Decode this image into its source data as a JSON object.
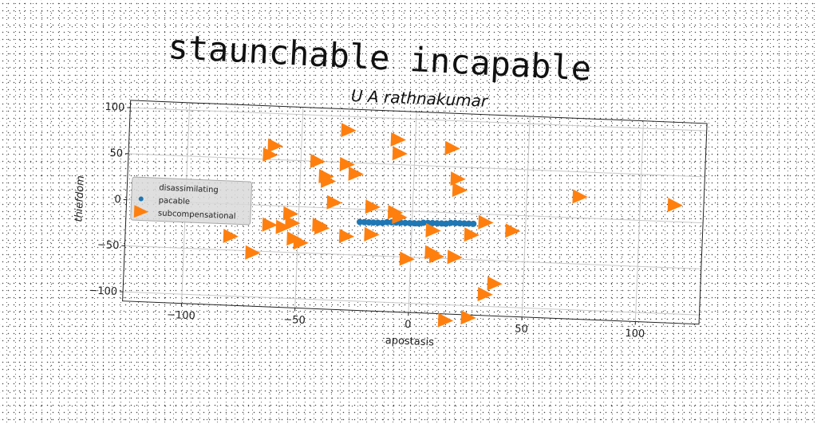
{
  "main_title": "staunchable incapable",
  "chart_data": {
    "type": "scatter",
    "title": "U A rathnakumar",
    "xlabel": "apostasis",
    "ylabel": "thiefdom",
    "xlim": [
      -126,
      128
    ],
    "ylim": [
      -110,
      108
    ],
    "xticks": [
      -100,
      -50,
      0,
      50,
      100
    ],
    "yticks": [
      -100,
      -50,
      0,
      50,
      100
    ],
    "grid": true,
    "legend": {
      "placement": "center-left",
      "entries": [
        "disassimilating",
        "pacable",
        "subcompensational"
      ]
    },
    "series": [
      {
        "name": "disassimilating",
        "marker": "none",
        "color": "",
        "points": []
      },
      {
        "name": "pacable",
        "marker": "circle",
        "color": "#1f77b4",
        "points": [
          [
            -23,
            -14
          ],
          [
            -21,
            -14
          ],
          [
            -19,
            -14
          ],
          [
            -17,
            -14
          ],
          [
            -15,
            -14
          ],
          [
            -13,
            -14
          ],
          [
            -11,
            -13
          ],
          [
            -9,
            -13
          ],
          [
            -7,
            -13
          ],
          [
            -5,
            -13
          ],
          [
            -3,
            -13
          ],
          [
            -1,
            -13
          ],
          [
            1,
            -13
          ],
          [
            3,
            -13
          ],
          [
            5,
            -12
          ],
          [
            7,
            -12
          ],
          [
            9,
            -12
          ],
          [
            11,
            -12
          ],
          [
            13,
            -12
          ],
          [
            15,
            -12
          ],
          [
            17,
            -11
          ],
          [
            19,
            -11
          ],
          [
            21,
            -11
          ],
          [
            23,
            -11
          ],
          [
            25,
            -11
          ],
          [
            27,
            -11
          ]
        ]
      },
      {
        "name": "subcompensational",
        "marker": "triangle-right",
        "color": "#ff7f0e",
        "points": [
          [
            -30,
            85
          ],
          [
            -8,
            77
          ],
          [
            -7,
            62
          ],
          [
            16,
            70
          ],
          [
            -62,
            65
          ],
          [
            -64,
            55
          ],
          [
            -43,
            50
          ],
          [
            -30,
            48
          ],
          [
            -26,
            38
          ],
          [
            -39,
            34
          ],
          [
            -38,
            29
          ],
          [
            19,
            37
          ],
          [
            20,
            25
          ],
          [
            73,
            23
          ],
          [
            115,
            18
          ],
          [
            -35,
            6
          ],
          [
            -18,
            3
          ],
          [
            -8,
            -2
          ],
          [
            -54,
            -8
          ],
          [
            -53,
            -18
          ],
          [
            -63,
            -21
          ],
          [
            -57,
            -23
          ],
          [
            -41,
            -19
          ],
          [
            -40,
            -22
          ],
          [
            -80,
            -35
          ],
          [
            -52,
            -35
          ],
          [
            -49,
            -39
          ],
          [
            -29,
            -30
          ],
          [
            -18,
            -27
          ],
          [
            -6,
            -7
          ],
          [
            9,
            -20
          ],
          [
            26,
            -23
          ],
          [
            32,
            -9
          ],
          [
            44,
            -17
          ],
          [
            -70,
            -52
          ],
          [
            -2,
            -52
          ],
          [
            9,
            -44
          ],
          [
            11,
            -48
          ],
          [
            19,
            -48
          ],
          [
            37,
            -75
          ],
          [
            33,
            -87
          ],
          [
            16,
            -117
          ],
          [
            26,
            -113
          ]
        ]
      }
    ]
  }
}
